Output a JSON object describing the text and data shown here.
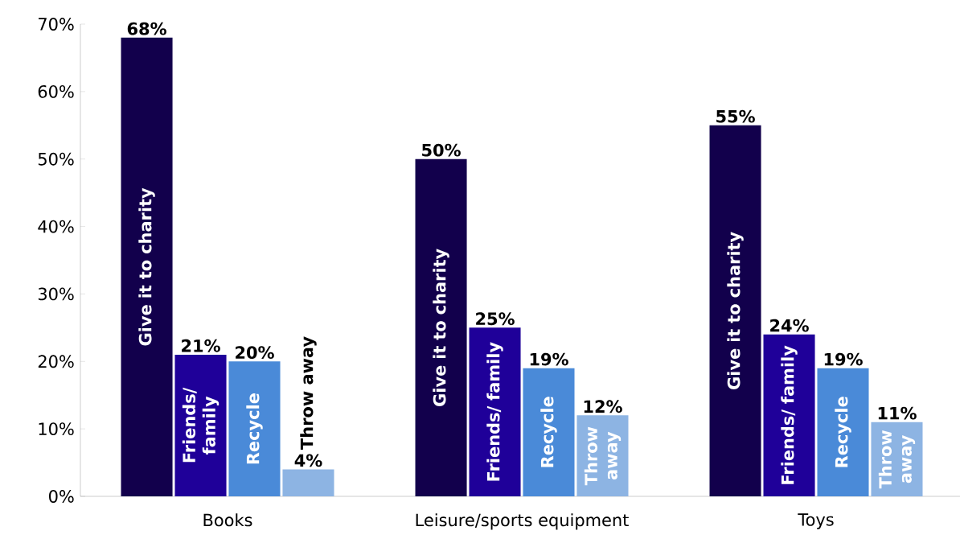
{
  "chart_data": {
    "type": "bar",
    "categories": [
      "Books",
      "Leisure/sports equipment",
      "Toys"
    ],
    "ylim": [
      0,
      70
    ],
    "yticks": [
      {
        "value": 0,
        "label": "0%"
      },
      {
        "value": 10,
        "label": "10%"
      },
      {
        "value": 20,
        "label": "20%"
      },
      {
        "value": 30,
        "label": "30%"
      },
      {
        "value": 40,
        "label": "40%"
      },
      {
        "value": 50,
        "label": "50%"
      },
      {
        "value": 60,
        "label": "60%"
      },
      {
        "value": 70,
        "label": "70%"
      }
    ],
    "series": [
      {
        "name": "Give it to charity",
        "color": "#12004c",
        "values": [
          68,
          50,
          55
        ],
        "value_labels": [
          "68%",
          "50%",
          "55%"
        ]
      },
      {
        "name": "Friends/ family",
        "color": "#1f0099",
        "values": [
          21,
          25,
          24
        ],
        "value_labels": [
          "21%",
          "25%",
          "24%"
        ]
      },
      {
        "name": "Recycle",
        "color": "#4a8ad8",
        "values": [
          20,
          19,
          19
        ],
        "value_labels": [
          "20%",
          "19%",
          "19%"
        ]
      },
      {
        "name": "Throw away",
        "color": "#8db4e3",
        "values": [
          4,
          12,
          11
        ],
        "value_labels": [
          "4%",
          "12%",
          "11%"
        ]
      }
    ]
  }
}
